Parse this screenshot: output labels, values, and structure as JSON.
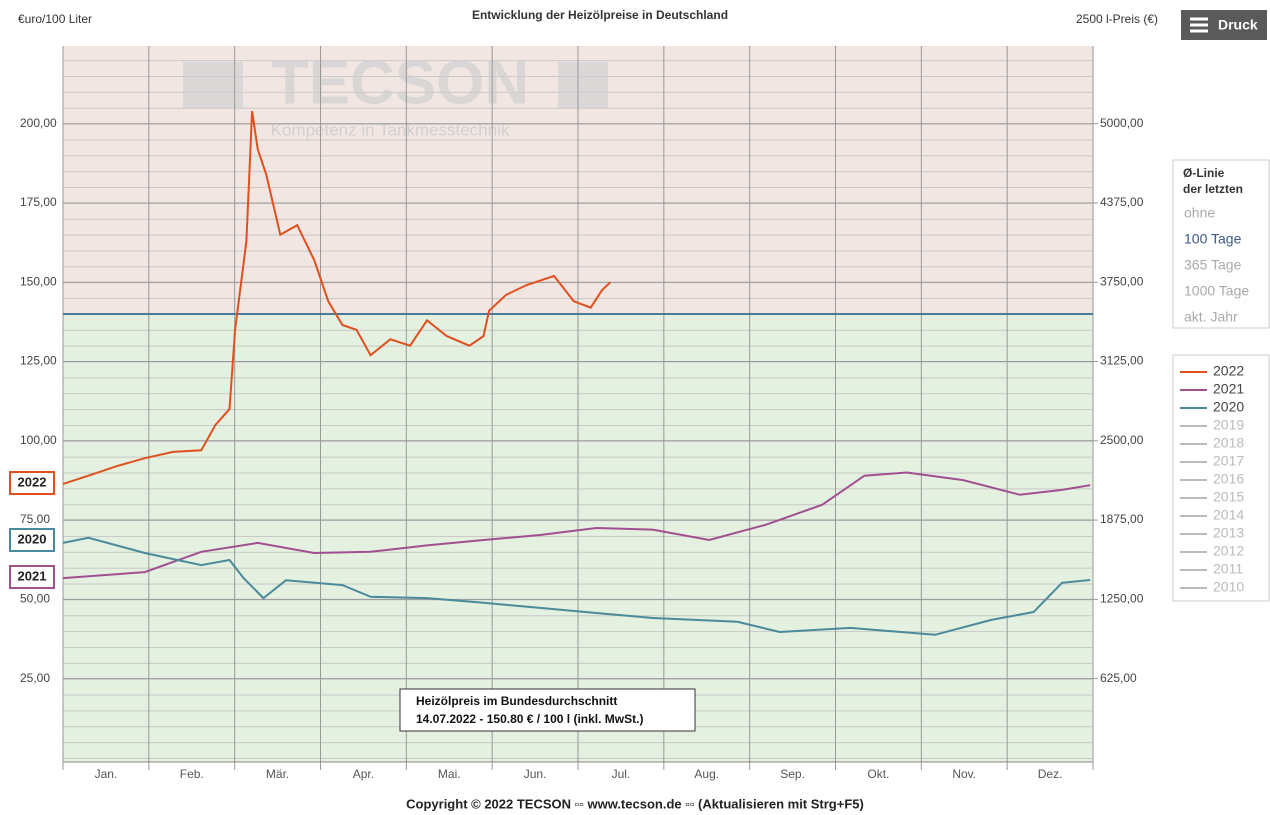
{
  "chart_data": {
    "type": "line",
    "title": "Entwicklung der Heizölpreise in Deutschland",
    "y_label": "€uro/100 Liter",
    "y2_label": "2500 l-Preis (€)",
    "watermark": "TECSON",
    "watermark_sub": "Kompetenz in Tankmesstechnik",
    "print_button": "Druck",
    "average_panel": {
      "title": "Ø-Linie der letzten",
      "options": [
        "ohne",
        "100 Tage",
        "365 Tage",
        "1000 Tage",
        "akt. Jahr"
      ],
      "selected": 1
    },
    "average_line": 140,
    "annotation": [
      "Heizölpreis im Bundesdurchschnitt",
      "14.07.2022 - 150.80 € / 100 l (inkl. MwSt.)"
    ],
    "footer": "Copyright © 2022 TECSON ▫▫ www.tecson.de ▫▫ (Aktualisieren mit Strg+F5)",
    "months": [
      "Jan.",
      "Feb.",
      "Mär.",
      "Apr.",
      "Mai.",
      "Jun.",
      "Jul.",
      "Aug.",
      "Sep.",
      "Okt.",
      "Nov.",
      "Dez."
    ],
    "xlim": [
      1,
      366
    ],
    "ylim": [
      -1.3,
      224.5
    ],
    "y2lim": [
      -32.5,
      5612.5
    ],
    "yticks": [
      {
        "value": 25,
        "label": "25,00"
      },
      {
        "value": 50,
        "label": "50,00"
      },
      {
        "value": 75,
        "label": "75,00"
      },
      {
        "value": 100,
        "label": "100,00"
      },
      {
        "value": 125,
        "label": "125,00"
      },
      {
        "value": 150,
        "label": "150,00"
      },
      {
        "value": 175,
        "label": "175,00"
      },
      {
        "value": 200,
        "label": "200,00"
      }
    ],
    "y2ticks": [
      {
        "value": 625,
        "label": "625,00"
      },
      {
        "value": 1250,
        "label": "1250,00"
      },
      {
        "value": 1875,
        "label": "1875,00"
      },
      {
        "value": 2500,
        "label": "2500,00"
      },
      {
        "value": 3125,
        "label": "3125,00"
      },
      {
        "value": 3750,
        "label": "3750,00"
      },
      {
        "value": 4375,
        "label": "4375,00"
      },
      {
        "value": 5000,
        "label": "5000,00"
      }
    ],
    "series": [
      {
        "name": "2022",
        "color": "#e0501e",
        "x": [
          1,
          10,
          20,
          30,
          40,
          50,
          55,
          60,
          62,
          66,
          68,
          70,
          73,
          78,
          84,
          90,
          95,
          100,
          105,
          110,
          117,
          124,
          130,
          137,
          145,
          150,
          152,
          158,
          165,
          175,
          182,
          188,
          192,
          195
        ],
        "values": [
          86.4,
          89,
          92,
          94.5,
          96.5,
          97,
          105,
          110,
          135,
          163,
          204,
          192,
          184,
          165,
          168,
          157,
          144,
          136.5,
          135,
          127,
          132,
          130,
          138,
          133,
          130,
          133,
          141,
          146,
          149,
          152,
          144,
          142,
          147.5,
          150
        ]
      },
      {
        "name": "2021",
        "color": "#a05090",
        "x": [
          1,
          30,
          50,
          70,
          90,
          110,
          130,
          150,
          170,
          190,
          210,
          230,
          250,
          270,
          285,
          300,
          320,
          340,
          355,
          365
        ],
        "values": [
          56.7,
          58.6,
          65,
          67.8,
          64.6,
          65,
          67,
          68.7,
          70.3,
          72.5,
          72,
          68.7,
          73.5,
          79.8,
          89,
          90,
          87.6,
          83,
          84.5,
          86
        ]
      },
      {
        "name": "2020",
        "color": "#4a8a9a",
        "x": [
          1,
          10,
          30,
          50,
          60,
          65,
          72,
          80,
          100,
          110,
          130,
          150,
          170,
          190,
          210,
          240,
          255,
          280,
          310,
          330,
          345,
          355,
          365
        ],
        "values": [
          67.8,
          69.4,
          64.6,
          60.8,
          62.4,
          56.7,
          50.4,
          56,
          54.5,
          50.8,
          50.4,
          48.9,
          47.3,
          45.7,
          44.1,
          42.9,
          39.7,
          41,
          38.8,
          43.5,
          46,
          55.2,
          56.1
        ]
      },
      {
        "name": "2019",
        "color": "#bbbbbb",
        "x": [],
        "values": []
      },
      {
        "name": "2018",
        "color": "#bbbbbb",
        "x": [],
        "values": []
      },
      {
        "name": "2017",
        "color": "#bbbbbb",
        "x": [],
        "values": []
      },
      {
        "name": "2016",
        "color": "#bbbbbb",
        "x": [],
        "values": []
      },
      {
        "name": "2015",
        "color": "#bbbbbb",
        "x": [],
        "values": []
      },
      {
        "name": "2014",
        "color": "#bbbbbb",
        "x": [],
        "values": []
      },
      {
        "name": "2013",
        "color": "#bbbbbb",
        "x": [],
        "values": []
      },
      {
        "name": "2012",
        "color": "#bbbbbb",
        "x": [],
        "values": []
      },
      {
        "name": "2011",
        "color": "#bbbbbb",
        "x": [],
        "values": []
      },
      {
        "name": "2010",
        "color": "#bbbbbb",
        "x": [],
        "values": []
      }
    ]
  }
}
